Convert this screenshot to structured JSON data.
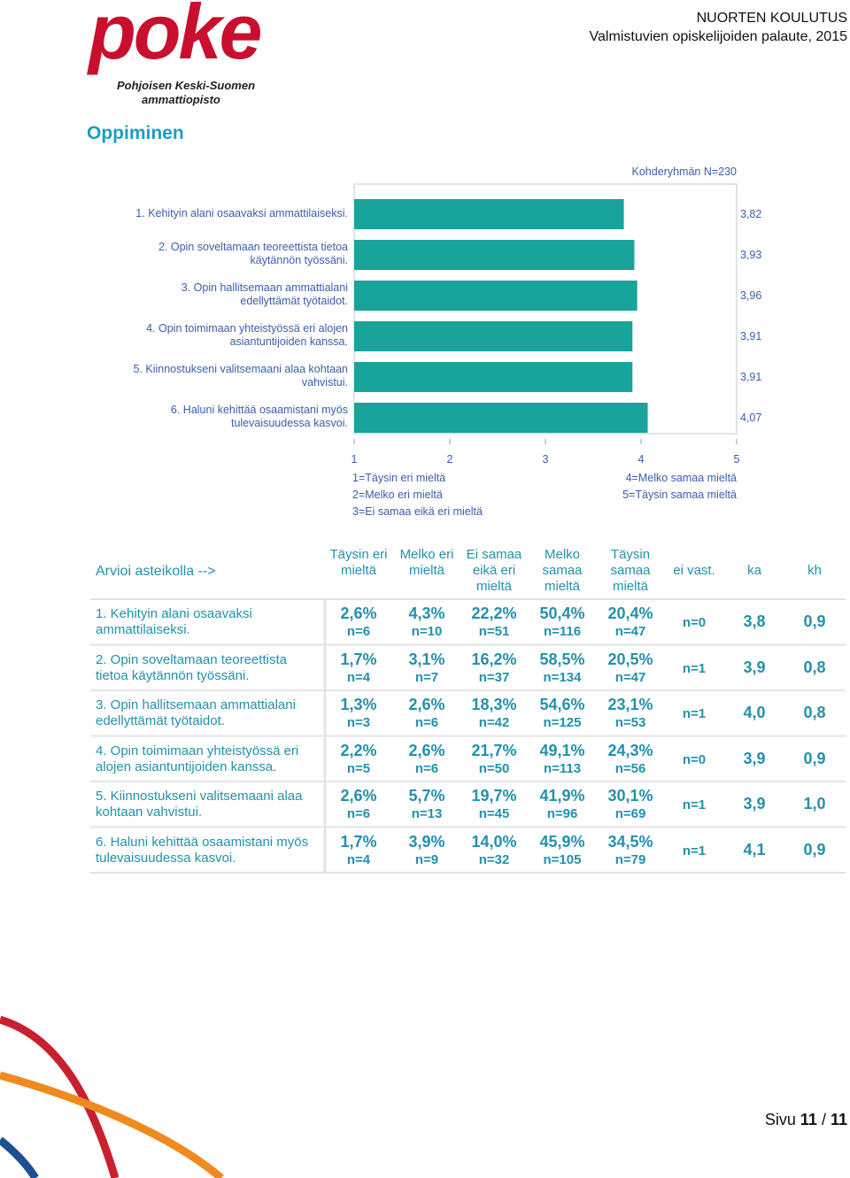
{
  "header": {
    "logo": "poke",
    "logo_line1": "Pohjoisen Keski-Suomen",
    "logo_line2": "ammattiopisto",
    "title": "NUORTEN KOULUTUS",
    "subtitle": "Valmistuvien opiskelijoiden palaute, 2015"
  },
  "section_title": "Oppiminen",
  "chart_data": {
    "type": "bar",
    "orientation": "horizontal",
    "note": "Kohderyhmän N=230",
    "categories": [
      "1. Kehityin alani osaavaksi ammattilaiseksi.",
      "2. Opin soveltamaan teoreettista tietoa käytännön työssäni.",
      "3. Opin hallitsemaan ammattialani edellyttämät työtaidot.",
      "4. Opin toimimaan yhteistyössä eri alojen asiantuntijoiden kanssa.",
      "5. Kiinnostukseni valitsemaani alaa kohtaan vahvistui.",
      "6. Haluni kehittää osaamistani myös tulevaisuudessa kasvoi."
    ],
    "values": [
      3.82,
      3.93,
      3.96,
      3.91,
      3.91,
      4.07
    ],
    "value_labels": [
      "3,82",
      "3,93",
      "3,96",
      "3,91",
      "3,91",
      "4,07"
    ],
    "color": "#18a39b",
    "xlim": [
      1,
      5
    ],
    "xticks": [
      1,
      2,
      3,
      4,
      5
    ],
    "scale_labels": [
      "1=Täysin eri mieltä",
      "2=Melko eri mieltä",
      "3=Ei samaa eikä eri mieltä",
      "4=Melko samaa mieltä",
      "5=Täysin samaa mieltä"
    ]
  },
  "table": {
    "header": [
      "Arvioi asteikolla -->",
      "Täysin eri mieltä",
      "Melko eri mieltä",
      "Ei samaa eikä eri mieltä",
      "Melko samaa mieltä",
      "Täysin samaa mieltä",
      "ei vast.",
      "ka",
      "kh"
    ],
    "rows": [
      {
        "label": "1. Kehityin alani osaavaksi ammattilaiseksi.",
        "cells": [
          [
            "2,6%",
            "n=6"
          ],
          [
            "4,3%",
            "n=10"
          ],
          [
            "22,2%",
            "n=51"
          ],
          [
            "50,4%",
            "n=116"
          ],
          [
            "20,4%",
            "n=47"
          ]
        ],
        "no_answer": "n=0",
        "mean": "3,8",
        "sd": "0,9"
      },
      {
        "label": "2. Opin soveltamaan teoreettista tietoa käytännön työssäni.",
        "cells": [
          [
            "1,7%",
            "n=4"
          ],
          [
            "3,1%",
            "n=7"
          ],
          [
            "16,2%",
            "n=37"
          ],
          [
            "58,5%",
            "n=134"
          ],
          [
            "20,5%",
            "n=47"
          ]
        ],
        "no_answer": "n=1",
        "mean": "3,9",
        "sd": "0,8"
      },
      {
        "label": "3. Opin hallitsemaan ammattialani edellyttämät työtaidot.",
        "cells": [
          [
            "1,3%",
            "n=3"
          ],
          [
            "2,6%",
            "n=6"
          ],
          [
            "18,3%",
            "n=42"
          ],
          [
            "54,6%",
            "n=125"
          ],
          [
            "23,1%",
            "n=53"
          ]
        ],
        "no_answer": "n=1",
        "mean": "4,0",
        "sd": "0,8"
      },
      {
        "label": "4. Opin toimimaan yhteistyössä eri alojen asiantuntijoiden kanssa.",
        "cells": [
          [
            "2,2%",
            "n=5"
          ],
          [
            "2,6%",
            "n=6"
          ],
          [
            "21,7%",
            "n=50"
          ],
          [
            "49,1%",
            "n=113"
          ],
          [
            "24,3%",
            "n=56"
          ]
        ],
        "no_answer": "n=0",
        "mean": "3,9",
        "sd": "0,9"
      },
      {
        "label": "5. Kiinnostukseni valitsemaani alaa kohtaan vahvistui.",
        "cells": [
          [
            "2,6%",
            "n=6"
          ],
          [
            "5,7%",
            "n=13"
          ],
          [
            "19,7%",
            "n=45"
          ],
          [
            "41,9%",
            "n=96"
          ],
          [
            "30,1%",
            "n=69"
          ]
        ],
        "no_answer": "n=1",
        "mean": "3,9",
        "sd": "1,0"
      },
      {
        "label": "6. Haluni kehittää osaamistani myös tulevaisuudessa kasvoi.",
        "cells": [
          [
            "1,7%",
            "n=4"
          ],
          [
            "3,9%",
            "n=9"
          ],
          [
            "14,0%",
            "n=32"
          ],
          [
            "45,9%",
            "n=105"
          ],
          [
            "34,5%",
            "n=79"
          ]
        ],
        "no_answer": "n=1",
        "mean": "4,1",
        "sd": "0,9"
      }
    ]
  },
  "footer": {
    "label": "Sivu",
    "page": "11",
    "separator": "/",
    "total": "11"
  }
}
